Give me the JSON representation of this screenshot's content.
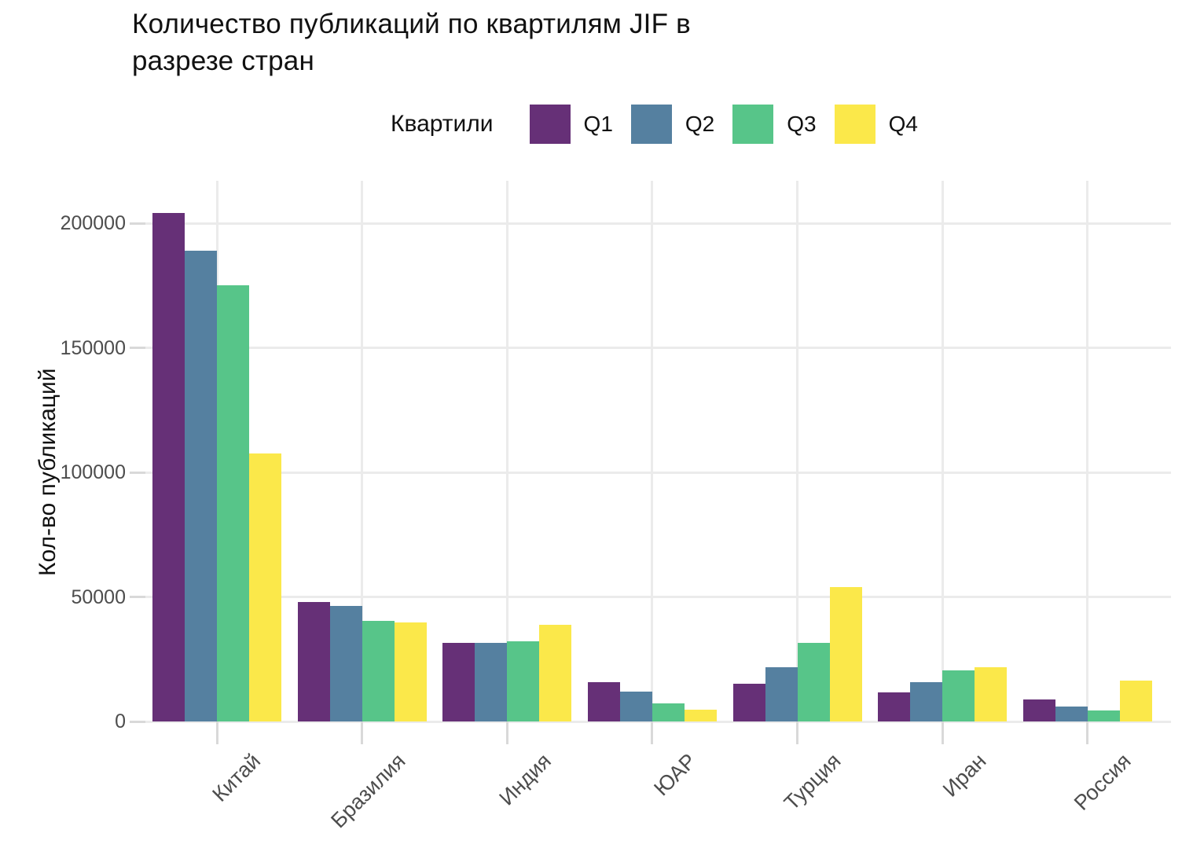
{
  "title_lines": "Количество публикаций по квартилям JIF в\nразрезе стран",
  "legend": {
    "title": "Квартили",
    "items": [
      {
        "label": "Q1",
        "color": "#663077"
      },
      {
        "label": "Q2",
        "color": "#5580a0"
      },
      {
        "label": "Q3",
        "color": "#57c589"
      },
      {
        "label": "Q4",
        "color": "#fbe84a"
      }
    ]
  },
  "chart_data": {
    "type": "bar",
    "title": "Количество публикаций по квартилям JIF в разрезе стран",
    "xlabel": "",
    "ylabel": "Кол-во публикаций",
    "legend_title": "Квартили",
    "legend_position": "top",
    "grid": true,
    "categories": [
      "Китай",
      "Бразилия",
      "Индия",
      "ЮАР",
      "Турция",
      "Иран",
      "Россия"
    ],
    "series": [
      {
        "name": "Q1",
        "color": "#663077",
        "values": [
          204000,
          48000,
          31400,
          15900,
          15000,
          11700,
          8800
        ]
      },
      {
        "name": "Q2",
        "color": "#5580a0",
        "values": [
          189000,
          46300,
          31700,
          12100,
          21700,
          15800,
          5900
        ]
      },
      {
        "name": "Q3",
        "color": "#57c589",
        "values": [
          175000,
          40400,
          32300,
          7100,
          31700,
          20600,
          4300
        ]
      },
      {
        "name": "Q4",
        "color": "#fbe84a",
        "values": [
          107500,
          39700,
          38900,
          4600,
          53800,
          21900,
          16400
        ]
      }
    ],
    "yticks": [
      0,
      50000,
      100000,
      150000,
      200000
    ],
    "ylim": [
      0,
      216900
    ]
  },
  "colors": {
    "background": "#ffffff",
    "gridline": "#ebebeb",
    "tick_mark": "#d9d9d9",
    "axis_text": "#4d4d4d",
    "title_text": "#111111"
  }
}
